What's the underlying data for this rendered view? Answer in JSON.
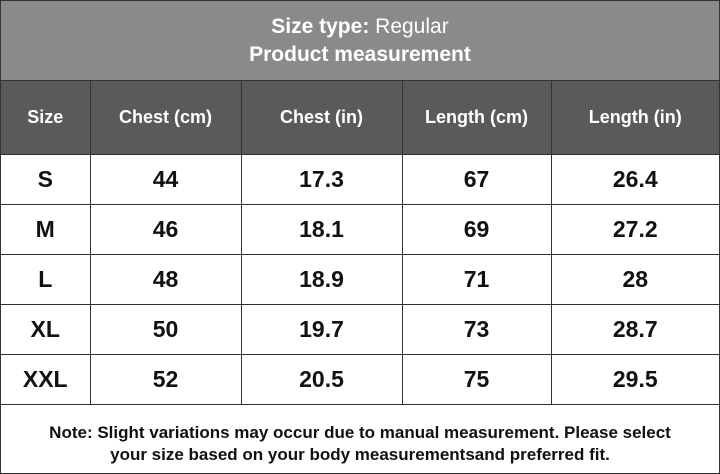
{
  "title": {
    "size_type_label": "Size type:",
    "size_type_value": "Regular",
    "subtitle": "Product measurement"
  },
  "table": {
    "headers": [
      "Size",
      "Chest (cm)",
      "Chest (in)",
      "Length (cm)",
      "Length (in)"
    ],
    "rows": [
      [
        "S",
        "44",
        "17.3",
        "67",
        "26.4"
      ],
      [
        "M",
        "46",
        "18.1",
        "69",
        "27.2"
      ],
      [
        "L",
        "48",
        "18.9",
        "71",
        "28"
      ],
      [
        "XL",
        "50",
        "19.7",
        "73",
        "28.7"
      ],
      [
        "XXL",
        "52",
        "20.5",
        "75",
        "29.5"
      ]
    ]
  },
  "note": {
    "line1": "Note: Slight variations may occur due to manual measurement. Please select",
    "line2": "your size based on your body measurementsand preferred fit."
  },
  "colors": {
    "title_bg": "#8a8a8a",
    "header_bg": "#5a5a5a",
    "border": "#333333"
  }
}
